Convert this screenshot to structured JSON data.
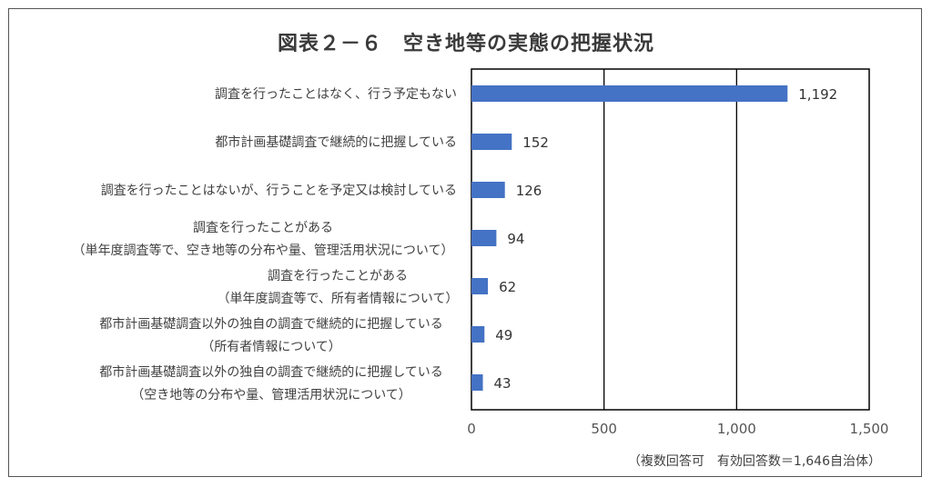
{
  "title": "図表２－６　空き地等の実態の把握状況",
  "note": "（複数回答可　有効回答数＝1,646自治体）",
  "colors": {
    "bar": "#4472c4",
    "frame": "#555555",
    "axis": "#000000"
  },
  "chart_data": {
    "type": "bar",
    "orientation": "horizontal",
    "title": "図表２－６　空き地等の実態の把握状況",
    "categories": [
      [
        "調査を行ったことはなく、行う予定もない"
      ],
      [
        "都市計画基礎調査で継続的に把握している"
      ],
      [
        "調査を行ったことはないが、行うことを予定又は検討している"
      ],
      [
        "調査を行ったことがある",
        "（単年度調査等で、空き地等の分布や量、管理活用状況について）"
      ],
      [
        "調査を行ったことがある",
        "（単年度調査等で、所有者情報について）"
      ],
      [
        "都市計画基礎調査以外の独自の調査で継続的に把握している",
        "（所有者情報について）"
      ],
      [
        "都市計画基礎調査以外の独自の調査で継続的に把握している",
        "（空き地等の分布や量、管理活用状況について）"
      ]
    ],
    "values": [
      1192,
      152,
      126,
      94,
      62,
      49,
      43
    ],
    "value_labels": [
      "1,192",
      "152",
      "126",
      "94",
      "62",
      "49",
      "43"
    ],
    "xlim": [
      0,
      1500
    ],
    "xticks": [
      0,
      500,
      1000,
      1500
    ],
    "xtick_labels": [
      "0",
      "500",
      "1,000",
      "1,500"
    ],
    "grid": true,
    "legend": "none"
  }
}
